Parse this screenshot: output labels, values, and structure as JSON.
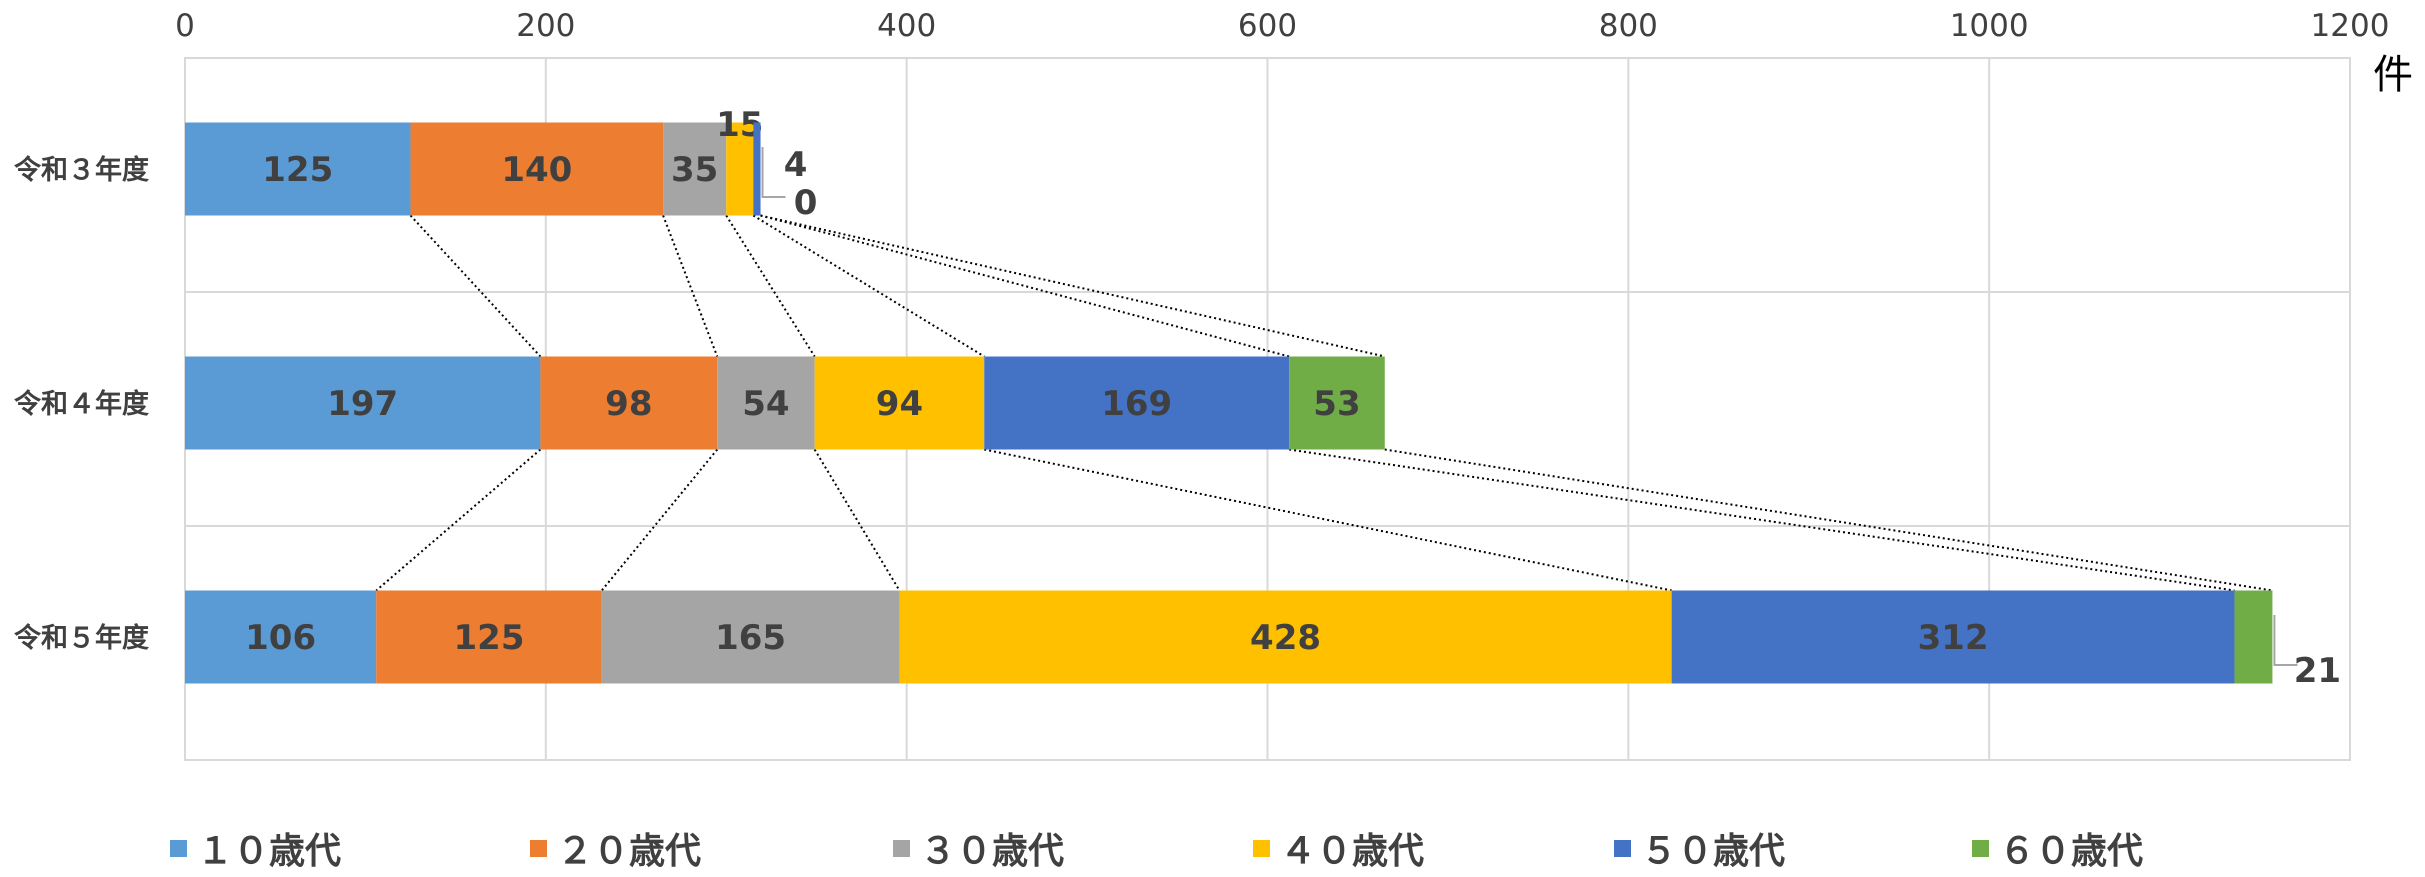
{
  "chart_data": {
    "type": "bar",
    "orientation": "horizontal",
    "stacked": true,
    "categories": [
      "令和３年度",
      "令和４年度",
      "令和５年度"
    ],
    "series": [
      {
        "name": "１０歳代",
        "color": "#5B9BD5",
        "values": [
          125,
          197,
          106
        ]
      },
      {
        "name": "２０歳代",
        "color": "#ED7D31",
        "values": [
          140,
          98,
          125
        ]
      },
      {
        "name": "３０歳代",
        "color": "#A5A5A5",
        "values": [
          35,
          54,
          165
        ]
      },
      {
        "name": "４０歳代",
        "color": "#FFC000",
        "values": [
          15,
          94,
          428
        ]
      },
      {
        "name": "５０歳代",
        "color": "#4472C4",
        "values": [
          4,
          169,
          312
        ]
      },
      {
        "name": "６０歳代",
        "color": "#70AD47",
        "values": [
          0,
          53,
          21
        ]
      }
    ],
    "x_ticks": [
      "0",
      "200",
      "400",
      "600",
      "800",
      "1000",
      "1200"
    ],
    "xlim": [
      0,
      1200
    ],
    "unit": "件",
    "grid": true,
    "series_lines": true,
    "legend_position": "bottom"
  }
}
